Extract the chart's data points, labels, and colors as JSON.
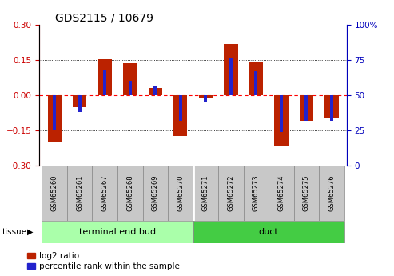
{
  "title": "GDS2115 / 10679",
  "samples": [
    "GSM65260",
    "GSM65261",
    "GSM65267",
    "GSM65268",
    "GSM65269",
    "GSM65270",
    "GSM65271",
    "GSM65272",
    "GSM65273",
    "GSM65274",
    "GSM65275",
    "GSM65276"
  ],
  "log2_ratio": [
    -0.2,
    -0.05,
    0.155,
    0.138,
    0.03,
    -0.175,
    -0.015,
    0.22,
    0.143,
    -0.215,
    -0.11,
    -0.1
  ],
  "percentile_rank": [
    25,
    38,
    68,
    60,
    57,
    32,
    45,
    77,
    67,
    24,
    32,
    32
  ],
  "groups": [
    {
      "label": "terminal end bud",
      "start": 0,
      "end": 5,
      "color": "#aaffaa"
    },
    {
      "label": "duct",
      "start": 6,
      "end": 11,
      "color": "#44cc44"
    }
  ],
  "tissue_label": "tissue",
  "ylim_left": [
    -0.3,
    0.3
  ],
  "ylim_right": [
    0,
    100
  ],
  "yticks_left": [
    -0.3,
    -0.15,
    0.0,
    0.15,
    0.3
  ],
  "yticks_right": [
    0,
    25,
    50,
    75,
    100
  ],
  "bar_color_red": "#BB2200",
  "bar_color_blue": "#2222CC",
  "bar_width": 0.55,
  "blue_bar_width": 0.13,
  "legend_red": "log2 ratio",
  "legend_blue": "percentile rank within the sample",
  "tick_color_left": "#CC0000",
  "tick_color_right": "#0000BB",
  "label_bg": "#C8C8C8",
  "separator_color": "#888888"
}
